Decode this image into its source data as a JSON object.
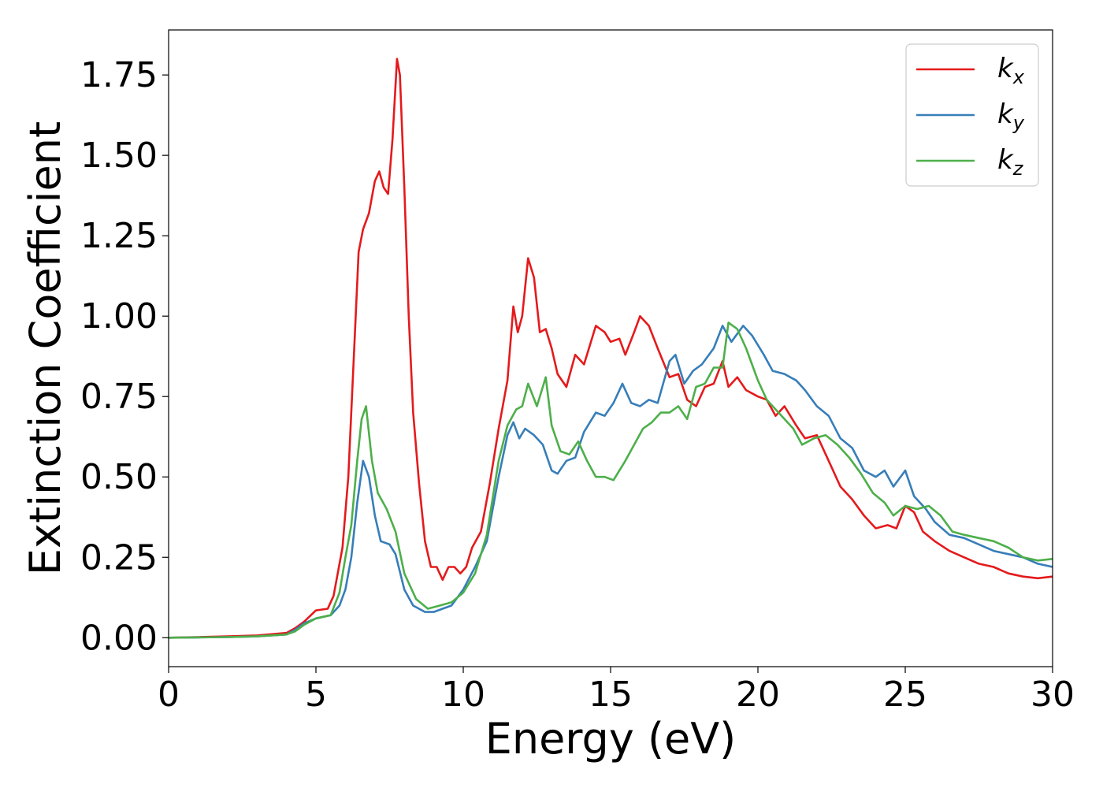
{
  "chart_data": {
    "type": "line",
    "xlabel": "Energy (eV)",
    "ylabel": "Extinction Coefficient",
    "xlim": [
      0,
      30
    ],
    "ylim": [
      -0.09,
      1.89
    ],
    "xticks": [
      "0",
      "5",
      "10",
      "15",
      "20",
      "25",
      "30"
    ],
    "yticks": [
      "0.00",
      "0.25",
      "0.50",
      "0.75",
      "1.00",
      "1.25",
      "1.50",
      "1.75"
    ],
    "grid": false,
    "legend_position": "top-right",
    "series": [
      {
        "name": "k",
        "subscript": "x",
        "color": "#e41a1c",
        "points": [
          [
            0,
            0.0
          ],
          [
            1,
            0.002
          ],
          [
            2,
            0.004
          ],
          [
            3,
            0.007
          ],
          [
            4,
            0.015
          ],
          [
            4.3,
            0.03
          ],
          [
            4.6,
            0.05
          ],
          [
            5.0,
            0.085
          ],
          [
            5.4,
            0.09
          ],
          [
            5.6,
            0.13
          ],
          [
            5.9,
            0.28
          ],
          [
            6.1,
            0.5
          ],
          [
            6.3,
            0.9
          ],
          [
            6.45,
            1.2
          ],
          [
            6.6,
            1.27
          ],
          [
            6.8,
            1.32
          ],
          [
            7.0,
            1.42
          ],
          [
            7.15,
            1.45
          ],
          [
            7.3,
            1.4
          ],
          [
            7.45,
            1.38
          ],
          [
            7.6,
            1.55
          ],
          [
            7.75,
            1.8
          ],
          [
            7.85,
            1.75
          ],
          [
            8.0,
            1.4
          ],
          [
            8.15,
            1.0
          ],
          [
            8.3,
            0.7
          ],
          [
            8.5,
            0.48
          ],
          [
            8.7,
            0.3
          ],
          [
            8.9,
            0.22
          ],
          [
            9.1,
            0.22
          ],
          [
            9.3,
            0.18
          ],
          [
            9.5,
            0.22
          ],
          [
            9.7,
            0.22
          ],
          [
            9.9,
            0.2
          ],
          [
            10.1,
            0.22
          ],
          [
            10.3,
            0.28
          ],
          [
            10.6,
            0.33
          ],
          [
            10.9,
            0.48
          ],
          [
            11.2,
            0.65
          ],
          [
            11.5,
            0.8
          ],
          [
            11.7,
            1.03
          ],
          [
            11.85,
            0.95
          ],
          [
            12.0,
            1.0
          ],
          [
            12.2,
            1.18
          ],
          [
            12.4,
            1.12
          ],
          [
            12.6,
            0.95
          ],
          [
            12.8,
            0.96
          ],
          [
            13.0,
            0.9
          ],
          [
            13.2,
            0.82
          ],
          [
            13.5,
            0.78
          ],
          [
            13.8,
            0.88
          ],
          [
            14.1,
            0.85
          ],
          [
            14.5,
            0.97
          ],
          [
            14.8,
            0.95
          ],
          [
            15.0,
            0.92
          ],
          [
            15.3,
            0.93
          ],
          [
            15.5,
            0.88
          ],
          [
            15.8,
            0.95
          ],
          [
            16.0,
            1.0
          ],
          [
            16.3,
            0.97
          ],
          [
            16.6,
            0.9
          ],
          [
            17.0,
            0.81
          ],
          [
            17.3,
            0.82
          ],
          [
            17.6,
            0.74
          ],
          [
            17.9,
            0.72
          ],
          [
            18.2,
            0.78
          ],
          [
            18.5,
            0.79
          ],
          [
            18.8,
            0.86
          ],
          [
            19.0,
            0.78
          ],
          [
            19.3,
            0.81
          ],
          [
            19.6,
            0.77
          ],
          [
            20.0,
            0.75
          ],
          [
            20.3,
            0.74
          ],
          [
            20.6,
            0.69
          ],
          [
            20.9,
            0.72
          ],
          [
            21.3,
            0.66
          ],
          [
            21.6,
            0.62
          ],
          [
            22.0,
            0.63
          ],
          [
            22.4,
            0.55
          ],
          [
            22.8,
            0.47
          ],
          [
            23.2,
            0.43
          ],
          [
            23.6,
            0.38
          ],
          [
            24.0,
            0.34
          ],
          [
            24.4,
            0.35
          ],
          [
            24.7,
            0.34
          ],
          [
            25.0,
            0.41
          ],
          [
            25.3,
            0.39
          ],
          [
            25.6,
            0.33
          ],
          [
            26.0,
            0.3
          ],
          [
            26.5,
            0.27
          ],
          [
            27.0,
            0.25
          ],
          [
            27.5,
            0.23
          ],
          [
            28.0,
            0.22
          ],
          [
            28.5,
            0.2
          ],
          [
            29.0,
            0.19
          ],
          [
            29.5,
            0.185
          ],
          [
            30.0,
            0.19
          ]
        ]
      },
      {
        "name": "k",
        "subscript": "y",
        "color": "#377eb8",
        "points": [
          [
            0,
            0.0
          ],
          [
            1,
            0.001
          ],
          [
            2,
            0.002
          ],
          [
            3,
            0.004
          ],
          [
            4,
            0.01
          ],
          [
            4.3,
            0.025
          ],
          [
            4.6,
            0.045
          ],
          [
            5.0,
            0.06
          ],
          [
            5.5,
            0.07
          ],
          [
            5.8,
            0.1
          ],
          [
            6.0,
            0.15
          ],
          [
            6.2,
            0.25
          ],
          [
            6.4,
            0.42
          ],
          [
            6.6,
            0.55
          ],
          [
            6.8,
            0.5
          ],
          [
            7.0,
            0.38
          ],
          [
            7.2,
            0.3
          ],
          [
            7.5,
            0.29
          ],
          [
            7.7,
            0.26
          ],
          [
            8.0,
            0.15
          ],
          [
            8.3,
            0.1
          ],
          [
            8.7,
            0.08
          ],
          [
            9.0,
            0.08
          ],
          [
            9.3,
            0.09
          ],
          [
            9.6,
            0.1
          ],
          [
            10.0,
            0.15
          ],
          [
            10.4,
            0.22
          ],
          [
            10.8,
            0.3
          ],
          [
            11.2,
            0.5
          ],
          [
            11.5,
            0.63
          ],
          [
            11.7,
            0.67
          ],
          [
            11.9,
            0.62
          ],
          [
            12.1,
            0.65
          ],
          [
            12.4,
            0.63
          ],
          [
            12.7,
            0.6
          ],
          [
            13.0,
            0.52
          ],
          [
            13.2,
            0.51
          ],
          [
            13.5,
            0.55
          ],
          [
            13.8,
            0.56
          ],
          [
            14.1,
            0.64
          ],
          [
            14.5,
            0.7
          ],
          [
            14.8,
            0.69
          ],
          [
            15.1,
            0.73
          ],
          [
            15.4,
            0.79
          ],
          [
            15.7,
            0.73
          ],
          [
            16.0,
            0.72
          ],
          [
            16.3,
            0.74
          ],
          [
            16.6,
            0.73
          ],
          [
            17.0,
            0.86
          ],
          [
            17.2,
            0.88
          ],
          [
            17.5,
            0.79
          ],
          [
            17.8,
            0.83
          ],
          [
            18.1,
            0.85
          ],
          [
            18.5,
            0.9
          ],
          [
            18.8,
            0.97
          ],
          [
            19.1,
            0.92
          ],
          [
            19.5,
            0.97
          ],
          [
            19.8,
            0.94
          ],
          [
            20.2,
            0.88
          ],
          [
            20.5,
            0.83
          ],
          [
            20.9,
            0.82
          ],
          [
            21.3,
            0.8
          ],
          [
            21.6,
            0.77
          ],
          [
            22.0,
            0.72
          ],
          [
            22.4,
            0.69
          ],
          [
            22.8,
            0.62
          ],
          [
            23.2,
            0.59
          ],
          [
            23.6,
            0.52
          ],
          [
            24.0,
            0.5
          ],
          [
            24.3,
            0.52
          ],
          [
            24.6,
            0.47
          ],
          [
            25.0,
            0.52
          ],
          [
            25.3,
            0.44
          ],
          [
            25.7,
            0.4
          ],
          [
            26.0,
            0.36
          ],
          [
            26.5,
            0.32
          ],
          [
            27.0,
            0.31
          ],
          [
            27.5,
            0.29
          ],
          [
            28.0,
            0.27
          ],
          [
            28.5,
            0.26
          ],
          [
            29.0,
            0.25
          ],
          [
            29.5,
            0.23
          ],
          [
            30.0,
            0.22
          ]
        ]
      },
      {
        "name": "k",
        "subscript": "z",
        "color": "#4daf4a",
        "points": [
          [
            0,
            0.0
          ],
          [
            1,
            0.001
          ],
          [
            2,
            0.002
          ],
          [
            3,
            0.004
          ],
          [
            4,
            0.01
          ],
          [
            4.3,
            0.02
          ],
          [
            4.6,
            0.04
          ],
          [
            5.0,
            0.06
          ],
          [
            5.5,
            0.07
          ],
          [
            5.8,
            0.14
          ],
          [
            6.0,
            0.25
          ],
          [
            6.2,
            0.35
          ],
          [
            6.4,
            0.55
          ],
          [
            6.55,
            0.68
          ],
          [
            6.7,
            0.72
          ],
          [
            6.9,
            0.55
          ],
          [
            7.1,
            0.45
          ],
          [
            7.4,
            0.4
          ],
          [
            7.7,
            0.33
          ],
          [
            8.0,
            0.2
          ],
          [
            8.4,
            0.12
          ],
          [
            8.8,
            0.09
          ],
          [
            9.2,
            0.1
          ],
          [
            9.6,
            0.11
          ],
          [
            10.0,
            0.14
          ],
          [
            10.4,
            0.2
          ],
          [
            10.8,
            0.32
          ],
          [
            11.2,
            0.55
          ],
          [
            11.5,
            0.66
          ],
          [
            11.8,
            0.71
          ],
          [
            12.0,
            0.72
          ],
          [
            12.2,
            0.79
          ],
          [
            12.5,
            0.72
          ],
          [
            12.8,
            0.81
          ],
          [
            13.0,
            0.66
          ],
          [
            13.3,
            0.58
          ],
          [
            13.6,
            0.57
          ],
          [
            13.9,
            0.61
          ],
          [
            14.2,
            0.55
          ],
          [
            14.5,
            0.5
          ],
          [
            14.8,
            0.5
          ],
          [
            15.1,
            0.49
          ],
          [
            15.5,
            0.55
          ],
          [
            15.8,
            0.6
          ],
          [
            16.1,
            0.65
          ],
          [
            16.4,
            0.67
          ],
          [
            16.7,
            0.7
          ],
          [
            17.0,
            0.7
          ],
          [
            17.3,
            0.72
          ],
          [
            17.6,
            0.68
          ],
          [
            17.9,
            0.78
          ],
          [
            18.2,
            0.79
          ],
          [
            18.5,
            0.84
          ],
          [
            18.8,
            0.84
          ],
          [
            19.0,
            0.98
          ],
          [
            19.3,
            0.96
          ],
          [
            19.6,
            0.9
          ],
          [
            20.0,
            0.8
          ],
          [
            20.3,
            0.74
          ],
          [
            20.6,
            0.71
          ],
          [
            20.9,
            0.68
          ],
          [
            21.2,
            0.65
          ],
          [
            21.5,
            0.6
          ],
          [
            21.9,
            0.62
          ],
          [
            22.3,
            0.63
          ],
          [
            22.7,
            0.6
          ],
          [
            23.1,
            0.56
          ],
          [
            23.5,
            0.51
          ],
          [
            23.9,
            0.45
          ],
          [
            24.3,
            0.42
          ],
          [
            24.6,
            0.38
          ],
          [
            25.0,
            0.41
          ],
          [
            25.4,
            0.4
          ],
          [
            25.8,
            0.41
          ],
          [
            26.2,
            0.38
          ],
          [
            26.6,
            0.33
          ],
          [
            27.0,
            0.32
          ],
          [
            27.5,
            0.31
          ],
          [
            28.0,
            0.3
          ],
          [
            28.5,
            0.28
          ],
          [
            29.0,
            0.25
          ],
          [
            29.5,
            0.24
          ],
          [
            30.0,
            0.245
          ]
        ]
      }
    ]
  }
}
